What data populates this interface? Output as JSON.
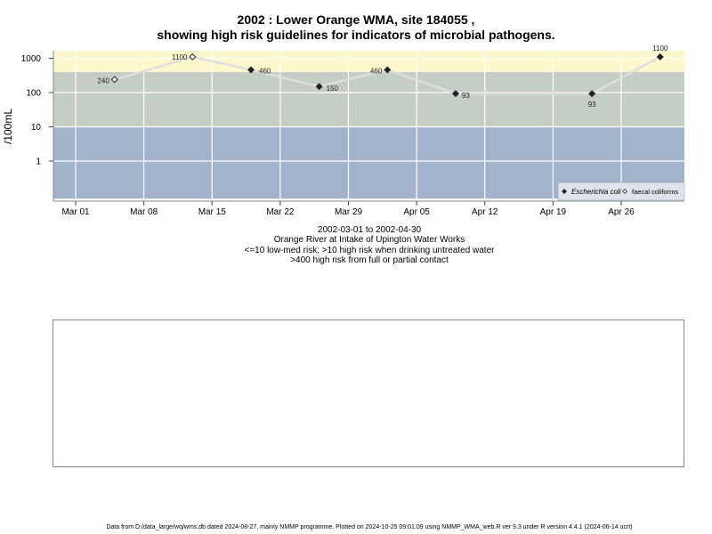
{
  "page": {
    "title_line1": "2002 : Lower Orange WMA, site 184055 ,",
    "title_line2": "showing high risk guidelines for indicators of microbial pathogens.",
    "subtitle_lines": [
      "2002-03-01 to 2002-04-30",
      "Orange River at Intake of Upington Water Works",
      "<=10 low-med risk; >10 high risk when drinking untreated water",
      ">400 high risk from full or partial contact"
    ],
    "footer": "Data from D:/data_large/wq/wms.db dated 2024-08-27, mainly NMMP programme. Plotted on 2024-10-25 09:01:09 using NMMP_WMA_web.R ver 9.3 under R version 4.4.1 (2024-06-14 ucrt)"
  },
  "chart_data": {
    "type": "line",
    "y_scale": "log10",
    "ylabel": "/100mL",
    "xlim": [
      "2002-02-24",
      "2002-05-01"
    ],
    "x_ticks": [
      {
        "date": "2002-03-01",
        "label": "Mar 01"
      },
      {
        "date": "2002-03-08",
        "label": "Mar 08"
      },
      {
        "date": "2002-03-15",
        "label": "Mar 15"
      },
      {
        "date": "2002-03-22",
        "label": "Mar 22"
      },
      {
        "date": "2002-03-29",
        "label": "Mar 29"
      },
      {
        "date": "2002-04-05",
        "label": "Apr 05"
      },
      {
        "date": "2002-04-12",
        "label": "Apr 12"
      },
      {
        "date": "2002-04-19",
        "label": "Apr 19"
      },
      {
        "date": "2002-04-26",
        "label": "Apr 26"
      }
    ],
    "y_ticks": [
      {
        "value": 1,
        "label": "1"
      },
      {
        "value": 10,
        "label": "10"
      },
      {
        "value": 100,
        "label": "100"
      },
      {
        "value": 1000,
        "label": "1000"
      }
    ],
    "risk_bands": [
      {
        "from": 0.08,
        "to": 10,
        "color": "#a2b3cb",
        "meaning": "low-med risk"
      },
      {
        "from": 10,
        "to": 400,
        "color": "#c5cec4",
        "meaning": "high risk drinking"
      },
      {
        "from": 400,
        "to": 2000,
        "color": "#fdf8cb",
        "meaning": "high risk contact"
      }
    ],
    "grid": true,
    "legend_position": "bottom-right",
    "series": [
      {
        "name": "Escherichia coli",
        "marker": "filled-diamond",
        "color": "#222222",
        "points": [
          {
            "x": "2002-03-19",
            "y": 460,
            "label": "460"
          },
          {
            "x": "2002-03-26",
            "y": 150,
            "label": "150"
          },
          {
            "x": "2002-04-02",
            "y": 460,
            "label": "460"
          },
          {
            "x": "2002-04-09",
            "y": 93,
            "label": "93"
          },
          {
            "x": "2002-04-23",
            "y": 93,
            "label": "93"
          },
          {
            "x": "2002-04-30",
            "y": 1100,
            "label": "1100"
          }
        ]
      },
      {
        "name": "faecal coliforms",
        "marker": "open-diamond",
        "color": "#222222",
        "points": [
          {
            "x": "2002-03-05",
            "y": 240,
            "label": "240"
          },
          {
            "x": "2002-03-13",
            "y": 1100,
            "label": "1100"
          }
        ]
      }
    ],
    "connector_color": "#dedede"
  }
}
